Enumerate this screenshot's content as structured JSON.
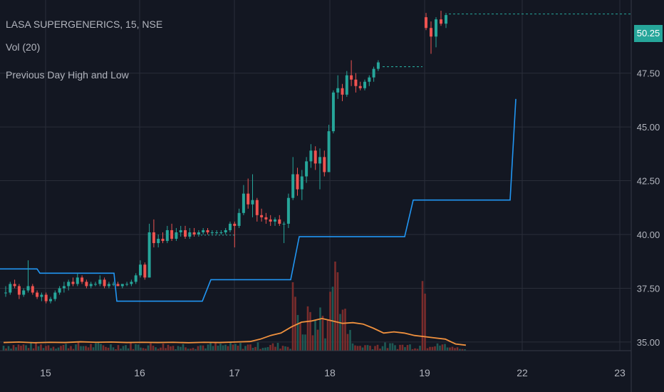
{
  "header": {
    "title": "LASA SUPERGENERICS, 15, NSE",
    "indicator_volume": "Vol (20)",
    "indicator_pdhl": "Previous Day High and Low"
  },
  "price_tag": {
    "value": "50.25"
  },
  "colors": {
    "background": "#131722",
    "grid": "#2a2e39",
    "up": "#26a69a",
    "down": "#ef5350",
    "volume_up": "#1e5a55",
    "volume_down": "#7a2c2c",
    "pdh_line": "#2196f3",
    "volume_ma": "#f0913e",
    "axis_text": "#b2b5be",
    "price_line": "#26a69a"
  },
  "chart_data": {
    "type": "candlestick",
    "title": "LASA SUPERGENERICS, 15, NSE",
    "x_ticks": [
      "15",
      "16",
      "17",
      "18",
      "19",
      "22",
      "23"
    ],
    "y_ticks": [
      "35.00",
      "37.50",
      "40.00",
      "42.50",
      "45.00",
      "47.50",
      "50.25"
    ],
    "y_range": [
      34.6,
      50.9
    ],
    "last_price": 50.25,
    "grid": true,
    "candles": [
      [
        37.3,
        37.6,
        37.1,
        37.3
      ],
      [
        37.3,
        37.8,
        37.2,
        37.7
      ],
      [
        37.7,
        37.9,
        37.5,
        37.6
      ],
      [
        37.6,
        37.7,
        37.0,
        37.2
      ],
      [
        37.2,
        37.5,
        37.1,
        37.4
      ],
      [
        37.4,
        38.8,
        37.3,
        37.6
      ],
      [
        37.6,
        37.7,
        37.2,
        37.3
      ],
      [
        37.3,
        37.4,
        37.0,
        37.1
      ],
      [
        37.1,
        37.3,
        36.9,
        37.2
      ],
      [
        37.2,
        37.3,
        36.8,
        36.9
      ],
      [
        36.9,
        37.1,
        36.8,
        37.0
      ],
      [
        37.0,
        37.4,
        36.9,
        37.3
      ],
      [
        37.3,
        37.6,
        37.2,
        37.5
      ],
      [
        37.5,
        37.8,
        37.3,
        37.6
      ],
      [
        37.6,
        37.9,
        37.4,
        37.8
      ],
      [
        37.8,
        38.0,
        37.6,
        37.7
      ],
      [
        37.7,
        38.2,
        37.6,
        38.0
      ],
      [
        38.0,
        38.1,
        37.7,
        37.8
      ],
      [
        37.8,
        37.9,
        37.5,
        37.6
      ],
      [
        37.6,
        37.8,
        37.5,
        37.7
      ],
      [
        37.7,
        37.8,
        37.6,
        37.7
      ],
      [
        37.7,
        38.1,
        37.6,
        37.9
      ],
      [
        37.9,
        38.0,
        37.5,
        37.6
      ],
      [
        37.6,
        37.8,
        37.5,
        37.7
      ],
      [
        37.7,
        37.8,
        37.6,
        37.7
      ],
      [
        37.7,
        37.8,
        37.6,
        37.6
      ],
      [
        37.6,
        37.7,
        37.5,
        37.7
      ],
      [
        37.7,
        37.8,
        37.6,
        37.7
      ],
      [
        37.7,
        37.9,
        37.6,
        37.8
      ],
      [
        37.8,
        38.2,
        37.7,
        38.1
      ],
      [
        38.1,
        38.8,
        38.0,
        38.6
      ],
      [
        38.6,
        38.7,
        37.9,
        38.0
      ],
      [
        38.0,
        40.5,
        38.0,
        40.1
      ],
      [
        40.1,
        40.7,
        39.4,
        39.6
      ],
      [
        39.6,
        40.0,
        39.4,
        39.8
      ],
      [
        39.8,
        40.1,
        39.6,
        39.7
      ],
      [
        39.7,
        40.4,
        39.6,
        40.2
      ],
      [
        40.2,
        40.5,
        39.7,
        39.8
      ],
      [
        39.8,
        40.3,
        39.7,
        40.1
      ],
      [
        40.1,
        40.4,
        39.9,
        40.2
      ],
      [
        40.2,
        40.4,
        39.8,
        39.9
      ],
      [
        39.9,
        40.3,
        39.8,
        40.1
      ],
      [
        40.1,
        40.3,
        39.9,
        40.0
      ],
      [
        40.0,
        40.2,
        39.9,
        40.1
      ],
      [
        40.1,
        40.3,
        40.0,
        40.2
      ],
      [
        40.2,
        40.3,
        40.0,
        40.1
      ],
      [
        40.1,
        40.2,
        40.0,
        40.1
      ],
      [
        40.1,
        40.2,
        40.0,
        40.1
      ],
      [
        40.1,
        40.2,
        40.0,
        40.1
      ],
      [
        40.1,
        40.3,
        40.0,
        40.2
      ],
      [
        40.2,
        40.6,
        40.1,
        40.5
      ],
      [
        40.5,
        40.6,
        39.4,
        40.4
      ],
      [
        40.4,
        41.2,
        40.3,
        41.0
      ],
      [
        41.0,
        42.3,
        40.9,
        41.9
      ],
      [
        41.9,
        42.6,
        41.2,
        41.4
      ],
      [
        41.4,
        42.8,
        40.8,
        41.6
      ],
      [
        41.6,
        41.7,
        40.6,
        40.9
      ],
      [
        40.9,
        41.2,
        40.6,
        40.8
      ],
      [
        40.8,
        41.0,
        40.5,
        40.7
      ],
      [
        40.7,
        40.9,
        40.4,
        40.6
      ],
      [
        40.6,
        40.8,
        40.4,
        40.7
      ],
      [
        40.7,
        40.9,
        40.4,
        40.5
      ],
      [
        40.5,
        40.6,
        39.6,
        40.5
      ],
      [
        40.5,
        41.9,
        40.3,
        41.7
      ],
      [
        41.7,
        43.6,
        41.6,
        42.8
      ],
      [
        42.8,
        43.1,
        41.8,
        42.1
      ],
      [
        42.1,
        43.0,
        41.6,
        42.7
      ],
      [
        42.7,
        43.6,
        42.4,
        43.4
      ],
      [
        43.4,
        44.2,
        43.1,
        43.9
      ],
      [
        43.9,
        44.1,
        43.0,
        43.3
      ],
      [
        43.3,
        44.0,
        42.1,
        43.6
      ],
      [
        43.6,
        43.9,
        42.7,
        42.9
      ],
      [
        42.9,
        45.1,
        42.9,
        44.8
      ],
      [
        44.8,
        46.7,
        44.7,
        46.6
      ],
      [
        46.6,
        47.4,
        46.3,
        46.8
      ],
      [
        46.8,
        47.0,
        46.2,
        46.5
      ],
      [
        46.5,
        47.6,
        46.4,
        47.4
      ],
      [
        47.4,
        48.1,
        46.9,
        47.2
      ],
      [
        47.2,
        47.5,
        46.6,
        46.9
      ],
      [
        46.9,
        47.1,
        46.7,
        46.8
      ],
      [
        46.8,
        47.2,
        46.7,
        47.1
      ],
      [
        47.1,
        47.4,
        46.9,
        47.3
      ],
      [
        47.3,
        47.8,
        47.1,
        47.7
      ],
      [
        47.7,
        48.1,
        47.6,
        48.0
      ],
      [
        50.1,
        50.3,
        49.5,
        49.6
      ],
      [
        49.6,
        49.9,
        48.4,
        49.2
      ],
      [
        49.2,
        50.1,
        48.7,
        50.0
      ],
      [
        50.0,
        50.4,
        49.7,
        49.8
      ],
      [
        49.8,
        50.3,
        49.6,
        50.2
      ]
    ],
    "day_high_line": [
      [
        0,
        38.4
      ],
      [
        13,
        38.4
      ],
      [
        14,
        38.2
      ],
      [
        40,
        38.2
      ],
      [
        41,
        36.9
      ],
      [
        71,
        36.9
      ],
      [
        74,
        37.9
      ],
      [
        102,
        37.9
      ],
      [
        105,
        39.9
      ],
      [
        142,
        39.9
      ],
      [
        145,
        41.6
      ],
      [
        179,
        41.6
      ],
      [
        181,
        46.3
      ]
    ],
    "volume_ma": [
      [
        0,
        0.16
      ],
      [
        6,
        0.18
      ],
      [
        12,
        0.15
      ],
      [
        18,
        0.17
      ],
      [
        24,
        0.16
      ],
      [
        30,
        0.19
      ],
      [
        36,
        0.17
      ],
      [
        42,
        0.18
      ],
      [
        48,
        0.16
      ],
      [
        54,
        0.17
      ],
      [
        60,
        0.16
      ],
      [
        66,
        0.17
      ],
      [
        72,
        0.15
      ],
      [
        78,
        0.17
      ],
      [
        84,
        0.16
      ],
      [
        90,
        0.18
      ],
      [
        96,
        0.2
      ],
      [
        100,
        0.3
      ],
      [
        104,
        0.45
      ],
      [
        108,
        0.55
      ],
      [
        112,
        0.8
      ],
      [
        116,
        1.0
      ],
      [
        120,
        1.05
      ],
      [
        124,
        1.15
      ],
      [
        128,
        1.05
      ],
      [
        132,
        0.95
      ],
      [
        136,
        0.98
      ],
      [
        140,
        0.92
      ],
      [
        144,
        0.75
      ],
      [
        148,
        0.55
      ],
      [
        152,
        0.6
      ],
      [
        156,
        0.55
      ],
      [
        160,
        0.45
      ],
      [
        164,
        0.4
      ],
      [
        168,
        0.35
      ],
      [
        172,
        0.3
      ],
      [
        176,
        0.1
      ],
      [
        180,
        0.05
      ]
    ]
  }
}
